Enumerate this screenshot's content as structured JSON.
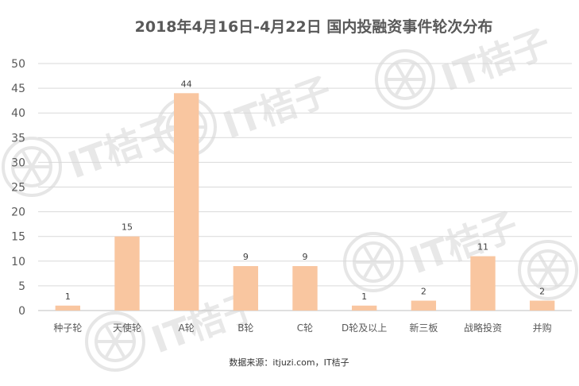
{
  "chart_data": {
    "type": "bar",
    "title": "2018年4月16日-4月22日  国内投融资事件轮次分布",
    "categories": [
      "种子轮",
      "天使轮",
      "A轮",
      "B轮",
      "C轮",
      "D轮及以上",
      "新三板",
      "战略投资",
      "并购"
    ],
    "values": [
      1,
      15,
      44,
      9,
      9,
      1,
      2,
      11,
      2
    ],
    "ylim": [
      0,
      50
    ],
    "yticks": [
      "0",
      "5",
      "10",
      "15",
      "20",
      "25",
      "30",
      "35",
      "40",
      "45",
      "50"
    ],
    "bar_color": "#F9C6A0",
    "grid": true,
    "source": "数据来源：itjuzi.com，IT桔子",
    "watermark": "IT桔子"
  }
}
